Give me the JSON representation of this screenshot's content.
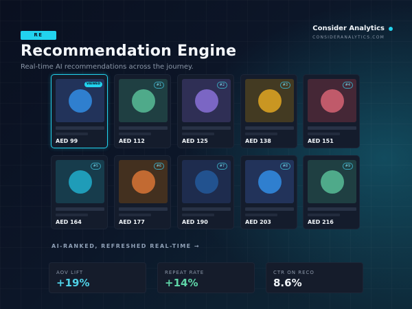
{
  "header": {
    "badge": "RE",
    "title": "Recommendation Engine",
    "subtitle": "Real-time AI recommendations across the journey."
  },
  "brand": {
    "name": "Consider Analytics",
    "url": "CONSIDERANALYTICS.COM"
  },
  "products": [
    {
      "tag": "VIEWED",
      "price": "AED 99",
      "thumb_color": "#22335a",
      "circle_color": "#2f7fcf",
      "icon": "product-placeholder-icon"
    },
    {
      "tag": "#1",
      "price": "AED 112",
      "thumb_color": "#1f3f42",
      "circle_color": "#4faa8a",
      "icon": "product-placeholder-icon"
    },
    {
      "tag": "#2",
      "price": "AED 125",
      "thumb_color": "#2f2f55",
      "circle_color": "#7b66c4",
      "icon": "product-placeholder-icon"
    },
    {
      "tag": "#3",
      "price": "AED 138",
      "thumb_color": "#433a22",
      "circle_color": "#c99622",
      "icon": "product-placeholder-icon"
    },
    {
      "tag": "#4",
      "price": "AED 151",
      "thumb_color": "#452736",
      "circle_color": "#c05a6a",
      "icon": "product-placeholder-icon"
    },
    {
      "tag": "#5",
      "price": "AED 164",
      "thumb_color": "#173c4c",
      "circle_color": "#1f9cb8",
      "icon": "product-placeholder-icon"
    },
    {
      "tag": "#6",
      "price": "AED 177",
      "thumb_color": "#43301f",
      "circle_color": "#c26a32",
      "icon": "product-placeholder-icon"
    },
    {
      "tag": "#7",
      "price": "AED 190",
      "thumb_color": "#1e2c4e",
      "circle_color": "#22528f",
      "icon": "product-placeholder-icon"
    },
    {
      "tag": "#8",
      "price": "AED 203",
      "thumb_color": "#22335a",
      "circle_color": "#2f7fcf",
      "icon": "product-placeholder-icon"
    },
    {
      "tag": "#9",
      "price": "AED 216",
      "thumb_color": "#1f3f42",
      "circle_color": "#4faa8a",
      "icon": "product-placeholder-icon"
    }
  ],
  "section_label": "AI-RANKED, REFRESHED REAL-TIME →",
  "stats": [
    {
      "label": "AOV LIFT",
      "value": "+19%",
      "color": "#4fd1e6"
    },
    {
      "label": "REPEAT RATE",
      "value": "+14%",
      "color": "#5fd6a8"
    },
    {
      "label": "CTR ON RECO",
      "value": "8.6%",
      "color": "#f1f5f9"
    }
  ],
  "colors": {
    "accent": "#22d3ee",
    "card_bg": "#141c2c"
  }
}
